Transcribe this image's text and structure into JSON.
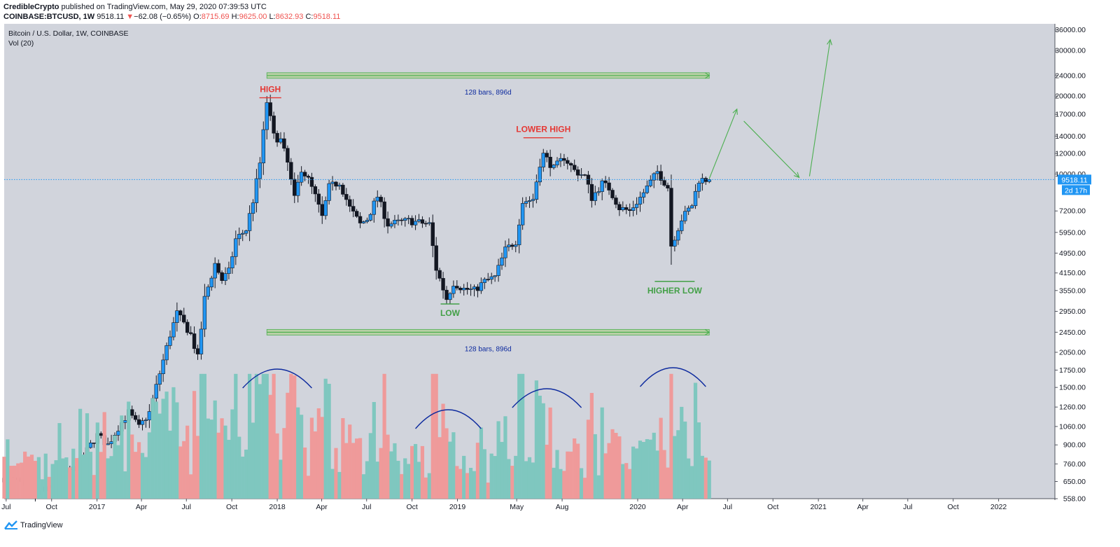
{
  "header": {
    "author": "CredibleCrypto",
    "published_text": "published on TradingView.com, May 29, 2020 07:39:53 UTC",
    "symbol": "COINBASE:BTCUSD, 1W",
    "last": "9518.11",
    "change_arrow": "▼",
    "change": "−62.08 (−0.65%)",
    "o_label": "O:",
    "o_value": "8715.69",
    "h_label": "H:",
    "h_value": "9625.00",
    "l_label": "L:",
    "l_value": "8632.93",
    "c_label": "C:",
    "c_value": "9518.11"
  },
  "footer": {
    "brand": "TradingView"
  },
  "chart_data": {
    "type": "candlestick",
    "title": "Bitcoin / U.S. Dollar, 1W, COINBASE",
    "indicator_label": "Vol (20)",
    "y_scale": "log",
    "ylim": [
      558,
      38000
    ],
    "y_ticks": [
      558,
      650,
      760,
      900,
      1060,
      1260,
      1500,
      1750,
      2050,
      2450,
      2950,
      3550,
      4150,
      4950,
      5950,
      7200,
      10000,
      12000,
      14000,
      17000,
      20000,
      24000,
      30000,
      36000
    ],
    "y_tick_labels": [
      "558.00",
      "650.00",
      "760.00",
      "900.00",
      "1060.00",
      "1260.00",
      "1500.00",
      "1750.00",
      "2050.00",
      "2450.00",
      "2950.00",
      "3550.00",
      "4150.00",
      "4950.00",
      "5950.00",
      "7200.00",
      "10000.00",
      "12000.00",
      "14000.00",
      "17000.00",
      "20000.00",
      "24000.00",
      "30000.00",
      "36000.00"
    ],
    "x_ticks": [
      {
        "label": "Jul",
        "date": "2016-07-01"
      },
      {
        "label": "Oct",
        "date": "2016-10-01"
      },
      {
        "label": "2017",
        "date": "2017-01-01"
      },
      {
        "label": "Apr",
        "date": "2017-04-01"
      },
      {
        "label": "Jul",
        "date": "2017-07-01"
      },
      {
        "label": "Oct",
        "date": "2017-10-01"
      },
      {
        "label": "2018",
        "date": "2018-01-01"
      },
      {
        "label": "Apr",
        "date": "2018-04-01"
      },
      {
        "label": "Jul",
        "date": "2018-07-01"
      },
      {
        "label": "Oct",
        "date": "2018-10-01"
      },
      {
        "label": "2019",
        "date": "2019-01-01"
      },
      {
        "label": "May",
        "date": "2019-05-01"
      },
      {
        "label": "Aug",
        "date": "2019-08-01"
      },
      {
        "label": "2020",
        "date": "2020-01-01"
      },
      {
        "label": "Apr",
        "date": "2020-04-01"
      },
      {
        "label": "Jul",
        "date": "2020-07-01"
      },
      {
        "label": "Oct",
        "date": "2020-10-01"
      },
      {
        "label": "2021",
        "date": "2021-01-01"
      },
      {
        "label": "Apr",
        "date": "2021-04-01"
      },
      {
        "label": "Jul",
        "date": "2021-07-01"
      },
      {
        "label": "Oct",
        "date": "2021-10-01"
      },
      {
        "label": "2022",
        "date": "2022-01-01"
      }
    ],
    "xlim": [
      "2016-06-27",
      "2022-04-25"
    ],
    "close_path": [
      [
        "2016-06-27",
        670
      ],
      [
        "2016-07-25",
        650
      ],
      [
        "2016-08-22",
        575
      ],
      [
        "2016-09-26",
        610
      ],
      [
        "2016-10-24",
        700
      ],
      [
        "2016-11-21",
        735
      ],
      [
        "2016-12-19",
        900
      ],
      [
        "2017-01-02",
        980
      ],
      [
        "2017-01-23",
        900
      ],
      [
        "2017-02-13",
        1050
      ],
      [
        "2017-03-06",
        1200
      ],
      [
        "2017-03-27",
        1050
      ],
      [
        "2017-04-17",
        1200
      ],
      [
        "2017-05-08",
        1700
      ],
      [
        "2017-05-29",
        2400
      ],
      [
        "2017-06-12",
        2900
      ],
      [
        "2017-07-10",
        2400
      ],
      [
        "2017-07-24",
        1950
      ],
      [
        "2017-08-07",
        3300
      ],
      [
        "2017-08-28",
        4500
      ],
      [
        "2017-09-11",
        3900
      ],
      [
        "2017-09-25",
        4200
      ],
      [
        "2017-10-09",
        5600
      ],
      [
        "2017-10-30",
        6100
      ],
      [
        "2017-11-13",
        7900
      ],
      [
        "2017-11-27",
        11000
      ],
      [
        "2017-12-11",
        19000
      ],
      [
        "2017-12-25",
        14000
      ],
      [
        "2018-01-08",
        13500
      ],
      [
        "2018-01-22",
        11000
      ],
      [
        "2018-02-05",
        8000
      ],
      [
        "2018-02-19",
        10500
      ],
      [
        "2018-03-05",
        9500
      ],
      [
        "2018-03-19",
        8200
      ],
      [
        "2018-04-02",
        6800
      ],
      [
        "2018-04-16",
        8900
      ],
      [
        "2018-05-07",
        9300
      ],
      [
        "2018-05-28",
        7400
      ],
      [
        "2018-06-18",
        6400
      ],
      [
        "2018-07-02",
        6700
      ],
      [
        "2018-07-23",
        8200
      ],
      [
        "2018-08-13",
        6400
      ],
      [
        "2018-09-03",
        6500
      ],
      [
        "2018-09-24",
        6600
      ],
      [
        "2018-10-15",
        6500
      ],
      [
        "2018-11-05",
        6400
      ],
      [
        "2018-11-19",
        4300
      ],
      [
        "2018-12-10",
        3300
      ],
      [
        "2018-12-24",
        3800
      ],
      [
        "2019-01-14",
        3600
      ],
      [
        "2019-02-04",
        3550
      ],
      [
        "2019-02-25",
        3850
      ],
      [
        "2019-03-18",
        4000
      ],
      [
        "2019-04-08",
        5100
      ],
      [
        "2019-04-29",
        5500
      ],
      [
        "2019-05-13",
        7800
      ],
      [
        "2019-06-03",
        8000
      ],
      [
        "2019-06-17",
        11000
      ],
      [
        "2019-06-24",
        11900
      ],
      [
        "2019-07-15",
        10500
      ],
      [
        "2019-08-05",
        11600
      ],
      [
        "2019-08-26",
        10300
      ],
      [
        "2019-09-16",
        9800
      ],
      [
        "2019-09-30",
        8100
      ],
      [
        "2019-10-21",
        9200
      ],
      [
        "2019-11-04",
        8800
      ],
      [
        "2019-11-25",
        7400
      ],
      [
        "2019-12-16",
        7200
      ],
      [
        "2020-01-06",
        8100
      ],
      [
        "2020-01-27",
        9300
      ],
      [
        "2020-02-10",
        10200
      ],
      [
        "2020-03-02",
        8900
      ],
      [
        "2020-03-09",
        5300
      ],
      [
        "2020-03-30",
        6700
      ],
      [
        "2020-04-20",
        7600
      ],
      [
        "2020-05-04",
        9500
      ],
      [
        "2020-05-25",
        9518
      ]
    ],
    "volume_ylim": [
      0,
      3500
    ],
    "volume_note": "Vol (20) histogram; green = up week, red = down week",
    "annotations": [
      {
        "text": "HIGH",
        "date": "2017-12-18",
        "price": 19700,
        "color": "#e53935"
      },
      {
        "text": "LOWER HIGH",
        "date": "2019-06-24",
        "price": 13800,
        "color": "#e53935"
      },
      {
        "text": "LOW",
        "date": "2018-12-17",
        "price": 3150,
        "color": "#43a047"
      },
      {
        "text": "HIGHER LOW",
        "date": "2020-03-16",
        "price": 3850,
        "color": "#43a047"
      },
      {
        "text": "128 bars, 896d",
        "start": "2017-12-11",
        "end": "2020-05-25",
        "price": 24000
      },
      {
        "text": "128 bars, 896d",
        "start": "2017-12-11",
        "end": "2020-05-25",
        "price": 2450
      }
    ],
    "projection": [
      [
        "2020-05-25",
        9600
      ],
      [
        "2020-07-20",
        17800
      ],
      [
        "2020-08-03",
        16000
      ],
      [
        "2020-11-23",
        9700
      ],
      [
        "2020-12-14",
        9800
      ],
      [
        "2021-01-25",
        33000
      ]
    ],
    "current_price": 9518.11,
    "current_price_label": "9518.11",
    "countdown_label": "2d 17h",
    "colors": {
      "bg": "#d1d4dc",
      "up": "#2196f3",
      "down": "#131722",
      "vol_up": "#7fc7bf",
      "vol_down": "#ef9a9a",
      "arrow": "#4caf50",
      "arc": "#0d2a9e"
    }
  }
}
